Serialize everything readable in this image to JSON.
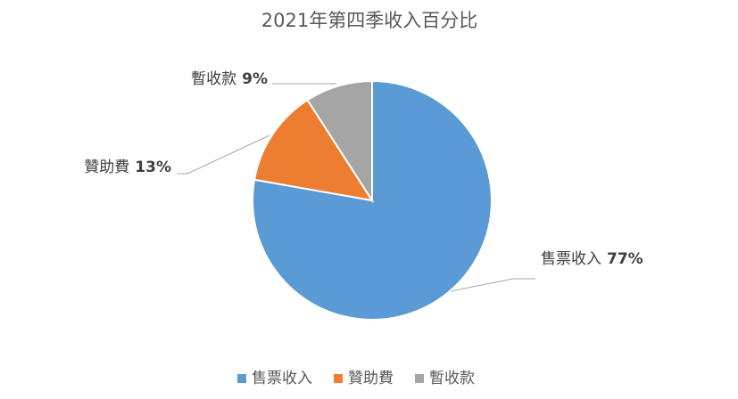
{
  "chart_data": {
    "type": "pie",
    "title": "2021年第四季收入百分比",
    "categories": [
      "售票收入",
      "贊助費",
      "暫收款"
    ],
    "values": [
      77,
      13,
      9
    ],
    "value_labels": [
      "77%",
      "13%",
      "9%"
    ],
    "colors": [
      "#5b9bd5",
      "#ed7d31",
      "#a5a5a5"
    ],
    "start_angle": 90,
    "direction": "clockwise",
    "legend": "bottom"
  }
}
